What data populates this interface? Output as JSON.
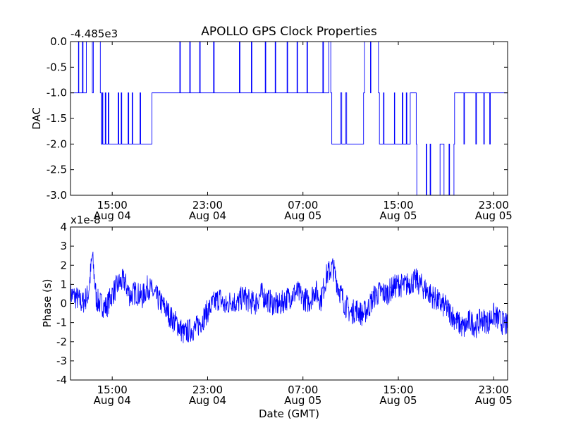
{
  "figure": {
    "title": "APOLLO GPS Clock Properties"
  },
  "chart_data": [
    {
      "type": "line",
      "title": "APOLLO GPS Clock Properties",
      "ylabel": "DAC",
      "offset_label": "-4.485e3",
      "ylim": [
        -3.0,
        0.0
      ],
      "yticks": [
        0.0,
        -0.5,
        -1.0,
        -1.5,
        -2.0,
        -2.5,
        -3.0
      ],
      "ytick_labels": [
        "0.0",
        "-0.5",
        "-1.0",
        "-1.5",
        "-2.0",
        "-2.5",
        "-3.0"
      ],
      "xlim": [
        "2014-08-04 11:30",
        "2014-08-06 00:10"
      ],
      "xticks": [
        "2014-08-04 15:00",
        "2014-08-04 23:00",
        "2014-08-05 07:00",
        "2014-08-05 15:00",
        "2014-08-05 23:00"
      ],
      "xtick_labels": [
        [
          "15:00",
          "Aug 04"
        ],
        [
          "23:00",
          "Aug 04"
        ],
        [
          "07:00",
          "Aug 05"
        ],
        [
          "15:00",
          "Aug 05"
        ],
        [
          "23:00",
          "Aug 05"
        ]
      ],
      "grid": false,
      "color": "#0000ff",
      "series": [
        {
          "x": [
            "2014-08-04 11:30",
            "2014-08-04 12:10",
            "2014-08-04 12:12",
            "2014-08-04 12:30",
            "2014-08-04 12:33",
            "2014-08-04 12:50",
            "2014-08-04 13:20",
            "2014-08-04 13:25",
            "2014-08-04 14:00",
            "2014-08-04 14:05",
            "2014-08-04 14:10",
            "2014-08-04 14:13",
            "2014-08-04 14:25",
            "2014-08-04 14:28",
            "2014-08-04 14:40",
            "2014-08-04 14:43",
            "2014-08-04 15:30",
            "2014-08-04 15:33",
            "2014-08-04 15:45",
            "2014-08-04 15:48",
            "2014-08-04 16:20",
            "2014-08-04 16:23",
            "2014-08-04 16:40",
            "2014-08-04 16:43",
            "2014-08-04 17:20",
            "2014-08-04 17:23",
            "2014-08-04 18:20",
            "2014-08-04 20:40",
            "2014-08-04 20:43",
            "2014-08-04 21:30",
            "2014-08-04 21:33",
            "2014-08-04 22:20",
            "2014-08-04 22:23",
            "2014-08-04 23:30",
            "2014-08-04 23:33",
            "2014-08-05 01:40",
            "2014-08-05 01:43",
            "2014-08-05 02:40",
            "2014-08-05 02:43",
            "2014-08-05 03:50",
            "2014-08-05 03:53",
            "2014-08-05 04:40",
            "2014-08-05 04:43",
            "2014-08-05 05:40",
            "2014-08-05 05:43",
            "2014-08-05 06:30",
            "2014-08-05 06:33",
            "2014-08-05 07:20",
            "2014-08-05 07:23",
            "2014-08-05 08:40",
            "2014-08-05 08:43",
            "2014-08-05 09:10",
            "2014-08-05 09:20",
            "2014-08-05 09:25",
            "2014-08-05 10:10",
            "2014-08-05 10:15",
            "2014-08-05 10:35",
            "2014-08-05 10:40",
            "2014-08-05 12:05",
            "2014-08-05 12:10",
            "2014-08-05 12:40",
            "2014-08-05 12:42",
            "2014-08-05 13:20",
            "2014-08-05 13:25",
            "2014-08-05 13:45",
            "2014-08-05 13:48",
            "2014-08-05 14:40",
            "2014-08-05 14:42",
            "2014-08-05 15:20",
            "2014-08-05 15:23",
            "2014-08-05 15:40",
            "2014-08-05 15:43",
            "2014-08-05 16:00",
            "2014-08-05 16:30",
            "2014-08-05 16:33",
            "2014-08-05 17:20",
            "2014-08-05 17:23",
            "2014-08-05 17:40",
            "2014-08-05 17:43",
            "2014-08-05 18:30",
            "2014-08-05 18:50",
            "2014-08-05 19:15",
            "2014-08-05 19:18",
            "2014-08-05 19:40",
            "2014-08-05 19:43",
            "2014-08-05 20:30",
            "2014-08-05 20:33",
            "2014-08-05 21:30",
            "2014-08-05 21:33",
            "2014-08-05 22:10",
            "2014-08-05 22:13",
            "2014-08-05 22:40",
            "2014-08-05 22:43",
            "2014-08-06 00:10"
          ],
          "y": [
            -1.0,
            0.0,
            -1.0,
            0.0,
            -1.0,
            0.0,
            -1.0,
            0.0,
            -1.0,
            -2.0,
            -1.0,
            -2.0,
            -1.0,
            -2.0,
            -1.0,
            -2.0,
            -1.0,
            -2.0,
            -1.0,
            -2.0,
            -1.0,
            -2.0,
            -1.0,
            -2.0,
            -1.0,
            -2.0,
            -1.0,
            0.0,
            -1.0,
            0.0,
            -1.0,
            0.0,
            -1.0,
            0.0,
            -1.0,
            0.0,
            -1.0,
            0.0,
            -1.0,
            0.0,
            -1.0,
            0.0,
            -1.0,
            0.0,
            -1.0,
            0.0,
            -1.0,
            0.0,
            -1.0,
            0.0,
            -1.0,
            0.0,
            -1.0,
            -2.0,
            -1.0,
            -2.0,
            -1.0,
            -2.0,
            -1.0,
            0.0,
            -1.0,
            0.0,
            -1.0,
            -2.0,
            -1.0,
            -2.0,
            -1.0,
            -2.0,
            -1.0,
            -2.0,
            -1.0,
            -2.0,
            -1.0,
            -2.0,
            -3.0,
            -2.0,
            -3.0,
            -2.0,
            -3.0,
            -2.0,
            -3.0,
            -2.0,
            -3.0,
            -2.0,
            -1.0,
            -2.0,
            -1.0,
            -2.0,
            -1.0,
            -2.0,
            -1.0,
            -2.0,
            -1.0,
            -1.0
          ]
        }
      ]
    },
    {
      "type": "line",
      "xlabel": "Date (GMT)",
      "ylabel": "Phase (s)",
      "offset_label": "x1e-8",
      "ylim": [
        -4,
        4
      ],
      "yticks": [
        4,
        3,
        2,
        1,
        0,
        -1,
        -2,
        -3,
        -4
      ],
      "ytick_labels": [
        "4",
        "3",
        "2",
        "1",
        "0",
        "-1",
        "-2",
        "-3",
        "-4"
      ],
      "xlim": [
        "2014-08-04 11:30",
        "2014-08-06 00:10"
      ],
      "xticks": [
        "2014-08-04 15:00",
        "2014-08-04 23:00",
        "2014-08-05 07:00",
        "2014-08-05 15:00",
        "2014-08-05 23:00"
      ],
      "xtick_labels": [
        [
          "15:00",
          "Aug 04"
        ],
        [
          "23:00",
          "Aug 04"
        ],
        [
          "07:00",
          "Aug 05"
        ],
        [
          "15:00",
          "Aug 05"
        ],
        [
          "23:00",
          "Aug 05"
        ]
      ],
      "grid": false,
      "color": "#0000ff",
      "series": [
        {
          "x": [
            "2014-08-04 11:30",
            "2014-08-04 12:00",
            "2014-08-04 12:30",
            "2014-08-04 13:00",
            "2014-08-04 13:20",
            "2014-08-04 13:40",
            "2014-08-04 14:00",
            "2014-08-04 14:30",
            "2014-08-04 15:00",
            "2014-08-04 15:30",
            "2014-08-04 16:00",
            "2014-08-04 16:30",
            "2014-08-04 17:00",
            "2014-08-04 17:30",
            "2014-08-04 18:00",
            "2014-08-04 18:30",
            "2014-08-04 19:00",
            "2014-08-04 19:30",
            "2014-08-04 20:00",
            "2014-08-04 20:30",
            "2014-08-04 21:00",
            "2014-08-04 21:30",
            "2014-08-04 22:00",
            "2014-08-04 22:30",
            "2014-08-04 23:00",
            "2014-08-04 23:30",
            "2014-08-05 00:00",
            "2014-08-05 00:30",
            "2014-08-05 01:00",
            "2014-08-05 01:30",
            "2014-08-05 02:00",
            "2014-08-05 02:30",
            "2014-08-05 03:00",
            "2014-08-05 03:30",
            "2014-08-05 04:00",
            "2014-08-05 04:30",
            "2014-08-05 05:00",
            "2014-08-05 05:30",
            "2014-08-05 06:00",
            "2014-08-05 06:30",
            "2014-08-05 07:00",
            "2014-08-05 07:30",
            "2014-08-05 08:00",
            "2014-08-05 08:30",
            "2014-08-05 09:00",
            "2014-08-05 09:30",
            "2014-08-05 10:00",
            "2014-08-05 10:30",
            "2014-08-05 11:00",
            "2014-08-05 11:30",
            "2014-08-05 12:00",
            "2014-08-05 12:30",
            "2014-08-05 13:00",
            "2014-08-05 13:30",
            "2014-08-05 14:00",
            "2014-08-05 14:30",
            "2014-08-05 15:00",
            "2014-08-05 15:30",
            "2014-08-05 16:00",
            "2014-08-05 16:30",
            "2014-08-05 17:00",
            "2014-08-05 17:30",
            "2014-08-05 18:00",
            "2014-08-05 18:30",
            "2014-08-05 19:00",
            "2014-08-05 19:30",
            "2014-08-05 20:00",
            "2014-08-05 20:30",
            "2014-08-05 21:00",
            "2014-08-05 21:30",
            "2014-08-05 22:00",
            "2014-08-05 22:30",
            "2014-08-05 23:00",
            "2014-08-05 23:30",
            "2014-08-06 00:10"
          ],
          "y": [
            0.5,
            0.3,
            0.0,
            0.5,
            2.5,
            0.2,
            0.0,
            -0.2,
            0.5,
            1.0,
            1.2,
            0.4,
            0.6,
            0.3,
            0.9,
            0.5,
            0.1,
            -0.3,
            -0.8,
            -1.1,
            -1.6,
            -1.4,
            -1.3,
            -0.9,
            -0.4,
            0.0,
            0.3,
            -0.2,
            0.2,
            0.0,
            0.4,
            0.1,
            0.0,
            0.5,
            0.2,
            0.0,
            -0.1,
            0.2,
            0.4,
            0.6,
            0.3,
            0.1,
            0.7,
            0.2,
            1.5,
            1.9,
            0.8,
            0.0,
            -0.5,
            -0.3,
            -0.6,
            -0.2,
            0.4,
            0.6,
            0.5,
            0.8,
            1.0,
            0.9,
            1.1,
            1.2,
            0.9,
            0.6,
            0.3,
            0.0,
            -0.2,
            -0.6,
            -1.0,
            -1.3,
            -0.9,
            -1.2,
            -0.8,
            -1.0,
            -0.6,
            -0.9,
            -1.2
          ]
        }
      ]
    }
  ]
}
